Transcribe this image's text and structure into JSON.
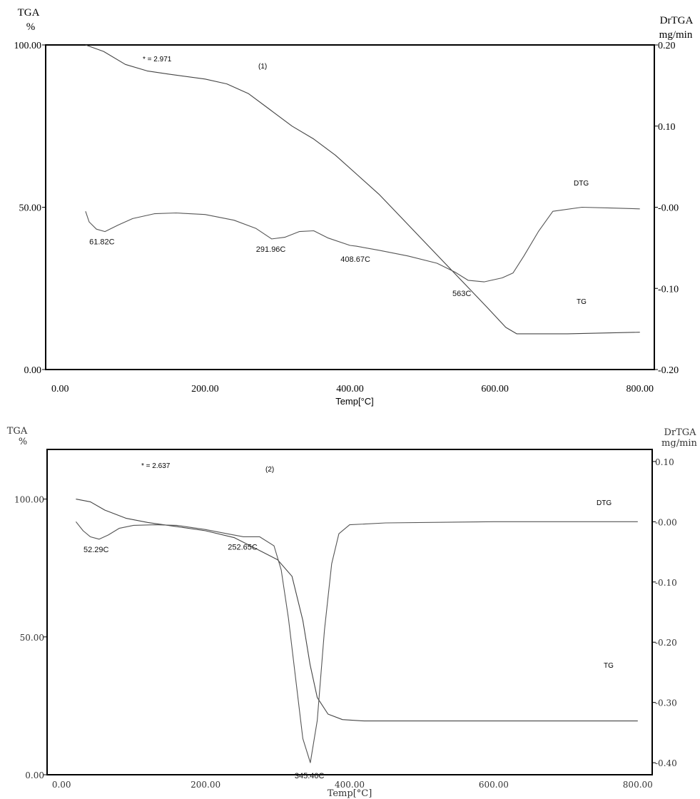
{
  "chart_data": [
    {
      "type": "line",
      "panel_label": "(1)",
      "asterisk_note": "* = 2.971",
      "left_axis": {
        "label_line1": "TGA",
        "label_line2": "%",
        "ylim": [
          0,
          100
        ],
        "ticks": [
          "0.00",
          "50.00",
          "100.00"
        ],
        "tick_values": [
          0,
          50,
          100
        ]
      },
      "right_axis": {
        "label_line1": "DrTGA",
        "label_line2": "mg/min",
        "ylim": [
          -0.2,
          0.2
        ],
        "ticks": [
          "-0.20",
          "-0.10",
          "-0.00",
          "0.10",
          "0.20"
        ],
        "tick_values": [
          -0.2,
          -0.1,
          0,
          0.1,
          0.2
        ]
      },
      "x_axis": {
        "label": "Temp[°C]",
        "xlim": [
          -20,
          820
        ],
        "ticks": [
          "0.00",
          "200.00",
          "400.00",
          "600.00",
          "800.00"
        ],
        "tick_values": [
          0,
          200,
          400,
          600,
          800
        ]
      },
      "series": [
        {
          "name": "TG",
          "axis": "left",
          "color": "#444444",
          "x": [
            35,
            60,
            90,
            120,
            150,
            200,
            230,
            260,
            290,
            320,
            350,
            380,
            410,
            440,
            470,
            500,
            530,
            560,
            590,
            615,
            630,
            700,
            800
          ],
          "y": [
            100,
            98,
            94,
            92,
            91,
            89.5,
            88,
            85,
            80,
            75,
            71,
            66,
            60,
            54,
            47,
            40,
            33,
            26,
            19,
            13,
            11,
            11,
            11.5
          ]
        },
        {
          "name": "DTG",
          "axis": "right",
          "color": "#555555",
          "x": [
            35,
            40,
            50,
            61.82,
            80,
            100,
            130,
            160,
            200,
            240,
            270,
            291.96,
            310,
            330,
            350,
            370,
            400,
            408.67,
            440,
            480,
            520,
            545,
            563,
            585,
            610,
            625,
            640,
            660,
            680,
            720,
            760,
            800
          ],
          "y": [
            -0.005,
            -0.018,
            -0.027,
            -0.03,
            -0.022,
            -0.014,
            -0.008,
            -0.007,
            -0.009,
            -0.016,
            -0.026,
            -0.039,
            -0.037,
            -0.03,
            -0.029,
            -0.038,
            -0.047,
            -0.048,
            -0.053,
            -0.06,
            -0.069,
            -0.08,
            -0.09,
            -0.092,
            -0.087,
            -0.081,
            -0.06,
            -0.03,
            -0.005,
            -0.0,
            -0.001,
            -0.002
          ]
        }
      ],
      "annotations": [
        {
          "text": "61.82C",
          "x": 61.82,
          "y": -0.03,
          "axis": "right"
        },
        {
          "text": "291.96C",
          "x": 291.96,
          "y": -0.039,
          "axis": "right"
        },
        {
          "text": "408.67C",
          "x": 408.67,
          "y": -0.048,
          "axis": "right"
        },
        {
          "text": "563C",
          "x": 563,
          "y": -0.09,
          "axis": "right"
        }
      ],
      "series_labels": [
        "DTG",
        "TG"
      ]
    },
    {
      "type": "line",
      "panel_label": "(2)",
      "asterisk_note": "* = 2.637",
      "left_axis": {
        "label_line1": "TGA",
        "label_line2": "%",
        "ylim": [
          0,
          118
        ],
        "ticks": [
          "0.00",
          "50.00",
          "100.00"
        ],
        "tick_values": [
          0,
          50,
          100
        ]
      },
      "right_axis": {
        "label_line1": "DrTGA",
        "label_line2": "mg/min",
        "ylim": [
          -0.42,
          0.12
        ],
        "ticks": [
          "-0.40",
          "-0.30",
          "-0.20",
          "-0.10",
          "-0.00",
          "0.10"
        ],
        "tick_values": [
          -0.4,
          -0.3,
          -0.2,
          -0.1,
          0,
          0.1
        ]
      },
      "x_axis": {
        "label": "Temp[°C]",
        "xlim": [
          -20,
          820
        ],
        "ticks": [
          "0.00",
          "200.00",
          "400.00",
          "600.00",
          "800.00"
        ],
        "tick_values": [
          0,
          200,
          400,
          600,
          800
        ]
      },
      "series": [
        {
          "name": "TG",
          "axis": "left",
          "color": "#444444",
          "x": [
            20,
            40,
            60,
            90,
            120,
            160,
            200,
            240,
            270,
            300,
            320,
            335,
            345,
            355,
            370,
            390,
            420,
            500,
            600,
            700,
            800
          ],
          "y": [
            100,
            99,
            96,
            93,
            91.5,
            90,
            88.5,
            86,
            82,
            78,
            72,
            56,
            40,
            28,
            22,
            20,
            19.5,
            19.5,
            19.5,
            19.5,
            19.5
          ]
        },
        {
          "name": "DTG",
          "axis": "right",
          "color": "#555555",
          "x": [
            20,
            30,
            40,
            52.29,
            65,
            80,
            100,
            130,
            160,
            200,
            230,
            252.65,
            275,
            295,
            305,
            315,
            325,
            335,
            345.4,
            355,
            365,
            375,
            385,
            400,
            450,
            600,
            800
          ],
          "y": [
            0.0,
            -0.015,
            -0.025,
            -0.029,
            -0.022,
            -0.011,
            -0.006,
            -0.005,
            -0.006,
            -0.013,
            -0.02,
            -0.025,
            -0.025,
            -0.04,
            -0.08,
            -0.16,
            -0.26,
            -0.36,
            -0.4,
            -0.33,
            -0.18,
            -0.07,
            -0.02,
            -0.005,
            -0.002,
            0.0,
            0.0
          ]
        }
      ],
      "annotations": [
        {
          "text": "52.29C",
          "x": 52.29,
          "y": -0.029,
          "axis": "right"
        },
        {
          "text": "252.65C",
          "x": 252.65,
          "y": -0.025,
          "axis": "right"
        },
        {
          "text": "345.40C",
          "x": 345.4,
          "y": -0.4,
          "axis": "right"
        }
      ],
      "series_labels": [
        "DTG",
        "TG"
      ]
    }
  ]
}
